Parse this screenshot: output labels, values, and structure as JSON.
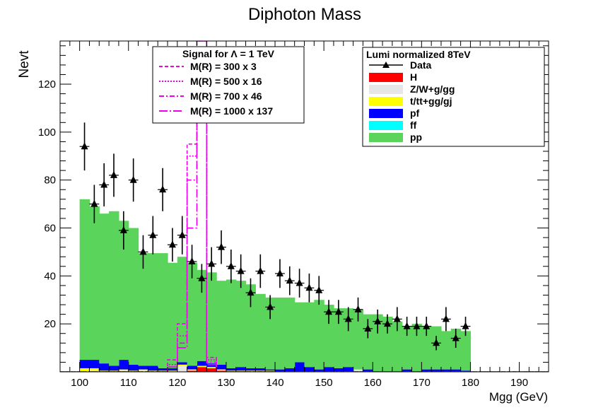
{
  "chart_data": {
    "type": "bar",
    "title": "Diphoton Mass",
    "xlabel": "Mgg (GeV)",
    "ylabel": "Nevt",
    "xlim": [
      96,
      196
    ],
    "ylim": [
      0,
      138
    ],
    "x_ticks": [
      100,
      110,
      120,
      130,
      140,
      150,
      160,
      170,
      180,
      190
    ],
    "y_ticks": [
      20,
      40,
      60,
      80,
      100,
      120
    ],
    "bin_width": 2,
    "grid": false,
    "stacked_backgrounds": {
      "bin_low_edges": [
        100,
        102,
        104,
        106,
        108,
        110,
        112,
        114,
        116,
        118,
        120,
        122,
        124,
        126,
        128,
        130,
        132,
        134,
        136,
        138,
        140,
        142,
        144,
        146,
        148,
        150,
        152,
        154,
        156,
        158,
        160,
        162,
        164,
        166,
        168,
        170,
        172,
        174,
        176,
        178
      ],
      "series": [
        {
          "name": "H",
          "color": "#ff0000",
          "values": [
            0,
            0,
            0,
            0,
            0,
            0,
            0,
            0,
            0,
            0,
            0,
            0.5,
            2,
            1.5,
            0.5,
            0,
            0,
            0,
            0,
            0,
            0,
            0,
            0,
            0,
            0,
            0,
            0,
            0,
            0,
            0,
            0,
            0,
            0,
            0,
            0,
            0,
            0,
            0,
            0,
            0
          ]
        },
        {
          "name": "Z/W+g/gg",
          "color": "#e6e6e6",
          "values": [
            0,
            0.5,
            0,
            0,
            0.5,
            0,
            0.5,
            0,
            0,
            0,
            2.5,
            0,
            0,
            0,
            0,
            0,
            0,
            0,
            0,
            0,
            0,
            0,
            0,
            0,
            0,
            0,
            0,
            0,
            1,
            0,
            0,
            0,
            0,
            0,
            0,
            0,
            0,
            0,
            0,
            0
          ]
        },
        {
          "name": "t/tt+gg/gj",
          "color": "#ffff00",
          "values": [
            1.5,
            1,
            0.5,
            0.5,
            0.5,
            0.5,
            0.5,
            0.5,
            0.5,
            0.5,
            0.5,
            0.5,
            0.5,
            0.5,
            0.5,
            0.5,
            0.5,
            0.5,
            0.5,
            0.5,
            0,
            0,
            0,
            0,
            0,
            0,
            0,
            0,
            0,
            0,
            0,
            0,
            0,
            0,
            0,
            0,
            0,
            0,
            0,
            0
          ]
        },
        {
          "name": "pf",
          "color": "#0000ff",
          "values": [
            3.5,
            3.5,
            3,
            2,
            4,
            2.5,
            1.5,
            2,
            1,
            1,
            1,
            1.5,
            2,
            1.5,
            2,
            1,
            1.5,
            1,
            1,
            0.5,
            1,
            1.5,
            4,
            2,
            1,
            2,
            1.5,
            2,
            0,
            1,
            0,
            0,
            0,
            1,
            0,
            1,
            1,
            1,
            1,
            0.5
          ]
        },
        {
          "name": "ff",
          "color": "#00ffff",
          "values": [
            0,
            0,
            0,
            0,
            0,
            0,
            0,
            0,
            0,
            0,
            0,
            0,
            0,
            0,
            0,
            0,
            0,
            0,
            0,
            0,
            0,
            0,
            0,
            0,
            0,
            0,
            0,
            0,
            0,
            0,
            0,
            0,
            0,
            0,
            0,
            0,
            0,
            0,
            0,
            0
          ]
        },
        {
          "name": "pp",
          "color": "#5ad45a",
          "values": [
            67,
            64,
            62.5,
            64.5,
            58,
            57,
            47,
            47,
            48,
            44,
            44,
            43,
            38,
            38,
            35,
            37,
            36,
            35,
            31,
            30,
            30,
            29.5,
            25,
            27,
            29,
            26,
            25,
            24.5,
            25,
            23,
            24,
            23,
            21,
            18,
            20,
            18,
            18,
            16,
            17,
            16.5
          ]
        }
      ]
    },
    "data_points": {
      "name": "Data",
      "x": [
        101,
        103,
        105,
        107,
        109,
        111,
        113,
        115,
        117,
        119,
        121,
        123,
        125,
        127,
        129,
        131,
        133,
        135,
        137,
        139,
        141,
        143,
        145,
        147,
        149,
        151,
        153,
        155,
        157,
        159,
        161,
        163,
        165,
        167,
        169,
        171,
        173,
        175,
        177,
        179
      ],
      "y": [
        94,
        70,
        78,
        82,
        59,
        80,
        50,
        57,
        76,
        53,
        57,
        46,
        39,
        45,
        52,
        44,
        42,
        33,
        42,
        27,
        41,
        38,
        37,
        35,
        34,
        25,
        25,
        22,
        26,
        18,
        21,
        20,
        22,
        19,
        19,
        19,
        12,
        22,
        14,
        19
      ],
      "err": [
        10,
        8,
        9,
        9,
        8,
        9,
        7,
        8,
        9,
        7,
        8,
        7,
        6,
        7,
        7,
        7,
        7,
        6,
        7,
        5,
        6,
        6,
        6,
        6,
        6,
        5,
        5,
        5,
        5,
        4,
        5,
        4,
        5,
        4,
        4,
        4,
        3,
        5,
        4,
        4
      ]
    },
    "signals": [
      {
        "name": "M(R) = 300 x 3",
        "style": "dashed",
        "color": "#ee00ee",
        "bins": [
          [
            118,
            120,
            5
          ],
          [
            120,
            122,
            20
          ],
          [
            122,
            124,
            95
          ],
          [
            124,
            126,
            138
          ],
          [
            126,
            128,
            6
          ]
        ]
      },
      {
        "name": "M(R) = 500 x 16",
        "style": "dotted",
        "color": "#ee00ee",
        "bins": [
          [
            118,
            120,
            3
          ],
          [
            120,
            122,
            15
          ],
          [
            122,
            124,
            90
          ],
          [
            124,
            126,
            138
          ],
          [
            126,
            128,
            5
          ]
        ]
      },
      {
        "name": "M(R) = 700 x 46",
        "style": "dashdot",
        "color": "#ee00ee",
        "bins": [
          [
            118,
            120,
            2
          ],
          [
            120,
            122,
            12
          ],
          [
            122,
            124,
            80
          ],
          [
            124,
            126,
            138
          ],
          [
            126,
            128,
            4
          ]
        ]
      },
      {
        "name": "M(R) = 1000 x 137",
        "style": "longdashdot",
        "color": "#ee00ee",
        "bins": [
          [
            118,
            120,
            2
          ],
          [
            120,
            122,
            10
          ],
          [
            122,
            124,
            60
          ],
          [
            124,
            126,
            130
          ],
          [
            126,
            128,
            3
          ]
        ]
      }
    ],
    "legend_signal": {
      "title": "Signal for Λ = 1 TeV",
      "placement": "top-center"
    },
    "legend_bkg": {
      "title": "Lumi normalized 8TeV",
      "placement": "top-right",
      "entries": [
        "Data",
        "H",
        "Z/W+g/gg",
        "t/tt+gg/gj",
        "pf",
        "ff",
        "pp"
      ]
    }
  }
}
